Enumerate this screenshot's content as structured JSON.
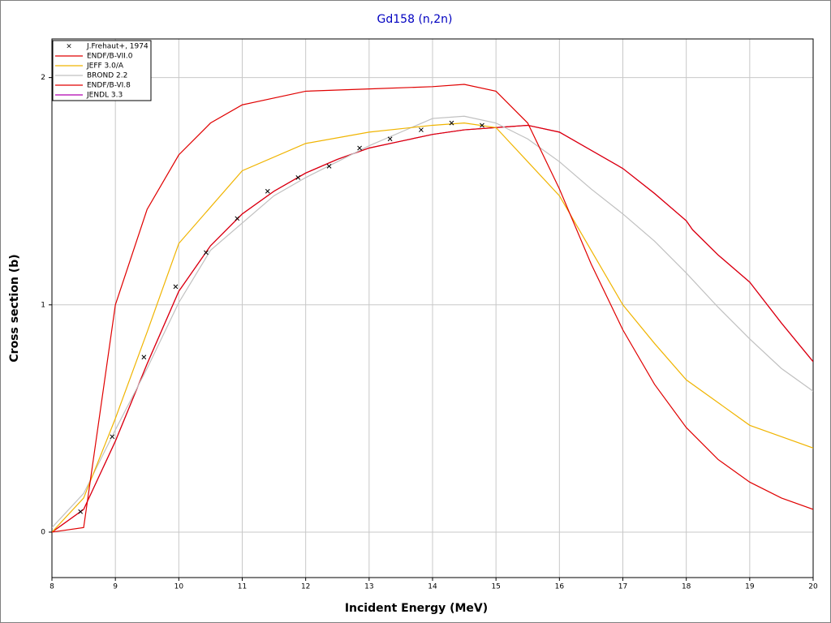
{
  "chart_data": {
    "type": "line",
    "title": "Gd158 (n,2n)",
    "x_label": "Incident Energy (MeV)",
    "y_label": "Cross section (b)",
    "xlim": [
      8,
      20
    ],
    "ylim": [
      -0.2,
      2.17
    ],
    "xticks": [
      8,
      9,
      10,
      11,
      12,
      13,
      14,
      15,
      16,
      17,
      18,
      19,
      20
    ],
    "yticks": [
      0,
      1,
      2
    ],
    "grid": true,
    "legend": "top-left",
    "series": [
      {
        "name": "J.Frehaut+, 1974",
        "color": "#000000",
        "marker": "x",
        "x": [
          8.45,
          8.95,
          9.45,
          9.95,
          10.43,
          10.92,
          11.4,
          11.88,
          12.37,
          12.85,
          13.33,
          13.82,
          14.3,
          14.78
        ],
        "values": [
          0.09,
          0.42,
          0.77,
          1.08,
          1.23,
          1.38,
          1.5,
          1.56,
          1.61,
          1.69,
          1.73,
          1.77,
          1.8,
          1.79
        ]
      },
      {
        "name": "ENDF/B-VII.0",
        "color": "#e00000",
        "x": [
          8,
          8.5,
          9,
          9.5,
          10,
          10.5,
          11,
          12,
          13,
          14,
          14.5,
          15,
          15.5,
          16,
          16.5,
          17,
          17.5,
          18,
          18.5,
          19,
          19.5,
          20
        ],
        "values": [
          0,
          0.02,
          1.0,
          1.42,
          1.66,
          1.8,
          1.88,
          1.94,
          1.95,
          1.96,
          1.97,
          1.94,
          1.8,
          1.51,
          1.18,
          0.89,
          0.65,
          0.46,
          0.32,
          0.22,
          0.15,
          0.1
        ]
      },
      {
        "name": "JEFF 3.0/A",
        "color": "#f0b400",
        "x": [
          8,
          8.5,
          9,
          9.5,
          10,
          10.5,
          11,
          12,
          13,
          14,
          14.5,
          15,
          15.5,
          16,
          16.5,
          17,
          17.5,
          18,
          18.5,
          19,
          19.5,
          20
        ],
        "values": [
          0,
          0.15,
          0.5,
          0.88,
          1.27,
          1.43,
          1.59,
          1.71,
          1.76,
          1.79,
          1.8,
          1.78,
          1.63,
          1.48,
          1.24,
          1.0,
          0.83,
          0.67,
          0.57,
          0.47,
          0.42,
          0.37
        ]
      },
      {
        "name": "BROND 2.2",
        "color": "#c0c0c0",
        "x": [
          8,
          8.5,
          9,
          9.5,
          10,
          10.5,
          11,
          11.5,
          12,
          12.5,
          13,
          13.5,
          14,
          14.5,
          15,
          15.5,
          16,
          16.5,
          17,
          17.5,
          18,
          18.5,
          19,
          19.5,
          20
        ],
        "values": [
          0.02,
          0.17,
          0.45,
          0.72,
          1.01,
          1.24,
          1.36,
          1.48,
          1.56,
          1.63,
          1.7,
          1.76,
          1.82,
          1.83,
          1.8,
          1.73,
          1.63,
          1.51,
          1.4,
          1.28,
          1.14,
          0.99,
          0.85,
          0.72,
          0.62
        ]
      },
      {
        "name": "ENDF/B-VI.8",
        "color": "#e00000",
        "x": [
          8,
          8.5,
          9,
          9.5,
          10,
          10.5,
          11,
          11.5,
          12,
          12.5,
          13,
          13.5,
          14,
          14.5,
          15,
          15.5,
          16,
          16.5,
          17,
          17.5,
          18,
          18.1,
          18.5,
          19,
          19.5,
          20
        ],
        "values": [
          0,
          0.1,
          0.4,
          0.74,
          1.06,
          1.26,
          1.4,
          1.5,
          1.58,
          1.64,
          1.69,
          1.72,
          1.75,
          1.77,
          1.78,
          1.79,
          1.76,
          1.68,
          1.6,
          1.49,
          1.37,
          1.33,
          1.22,
          1.1,
          0.92,
          0.75
        ]
      },
      {
        "name": "JENDL 3.3",
        "color": "#b000b0",
        "x": [
          8,
          8.5,
          9,
          9.5,
          10,
          10.5,
          11,
          11.5,
          12,
          12.5,
          13,
          13.5,
          14,
          14.5,
          15,
          15.5,
          16,
          16.5,
          17,
          17.5,
          18,
          18.1,
          18.5,
          19,
          19.5,
          20
        ],
        "values": [
          0,
          0.1,
          0.4,
          0.74,
          1.06,
          1.26,
          1.4,
          1.5,
          1.58,
          1.64,
          1.69,
          1.72,
          1.75,
          1.77,
          1.78,
          1.79,
          1.76,
          1.68,
          1.6,
          1.49,
          1.37,
          1.33,
          1.22,
          1.1,
          0.92,
          0.75
        ]
      }
    ]
  }
}
